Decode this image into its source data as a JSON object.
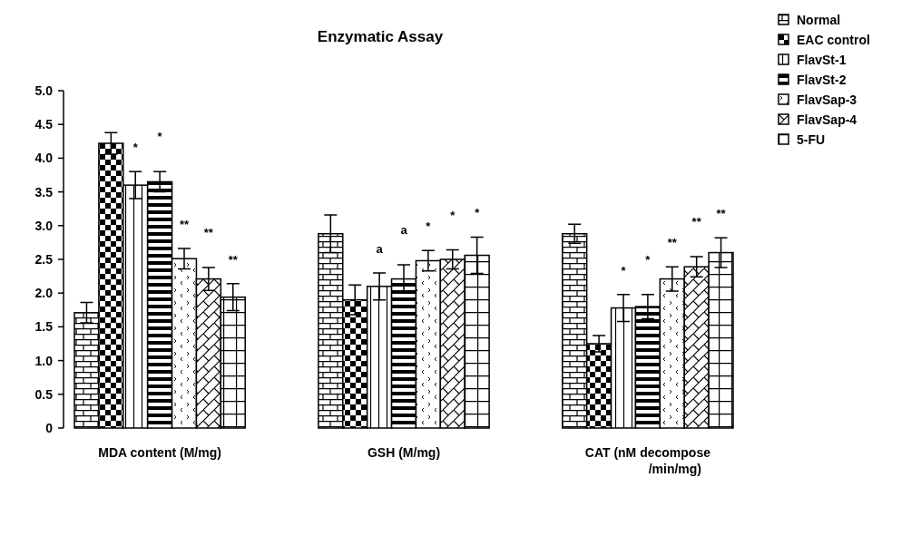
{
  "chart_data": {
    "type": "bar",
    "title": "Enzymatic Assay",
    "categories": [
      "MDA content (M/mg)",
      "GSH (M/mg)",
      "CAT (nM decompose /min/mg)"
    ],
    "series": [
      {
        "name": "Normal",
        "color": "#000000",
        "values": [
          1.71,
          2.88,
          2.88
        ],
        "errors": [
          0.15,
          0.28,
          0.14
        ]
      },
      {
        "name": "EAC control",
        "color": "#000000",
        "values": [
          4.22,
          1.9,
          1.25
        ],
        "errors": [
          0.16,
          0.22,
          0.12
        ]
      },
      {
        "name": "FlavSt-1",
        "color": "#000000",
        "values": [
          3.6,
          2.1,
          1.78
        ],
        "errors": [
          0.2,
          0.2,
          0.2
        ]
      },
      {
        "name": "FlavSt-2",
        "color": "#000000",
        "values": [
          3.65,
          2.21,
          1.8
        ],
        "errors": [
          0.15,
          0.21,
          0.18
        ]
      },
      {
        "name": "FlavSap-3",
        "color": "#000000",
        "values": [
          2.51,
          2.48,
          2.21
        ],
        "errors": [
          0.15,
          0.15,
          0.18
        ]
      },
      {
        "name": "FlavSap-4",
        "color": "#000000",
        "values": [
          2.21,
          2.5,
          2.39
        ],
        "errors": [
          0.17,
          0.14,
          0.15
        ]
      },
      {
        "name": "5-FU",
        "color": "#000000",
        "values": [
          1.94,
          2.56,
          2.6
        ],
        "errors": [
          0.2,
          0.27,
          0.22
        ]
      }
    ],
    "ylim": [
      0,
      5
    ],
    "yticks": [
      0,
      {
        "value": 0.5,
        "label": "0.5"
      },
      {
        "value": 1,
        "label": "1.0"
      },
      {
        "value": 1.5,
        "label": "1.5"
      },
      {
        "value": 2,
        "label": "2.0"
      },
      {
        "value": 2.5,
        "label": "2.5"
      },
      {
        "value": 3,
        "label": "3.0"
      },
      {
        "value": 3.5,
        "label": "3.5"
      },
      {
        "value": 4,
        "label": "4.0"
      },
      {
        "value": 4.5,
        "label": "4.5"
      },
      {
        "value": 5,
        "label": "5.0"
      }
    ],
    "legend": "top right",
    "grid": false,
    "annotations": [
      "*",
      "*",
      "**",
      "**",
      "**",
      "a",
      "a",
      "*",
      "*",
      "*",
      "*",
      "*",
      "**",
      "**",
      "**"
    ]
  }
}
